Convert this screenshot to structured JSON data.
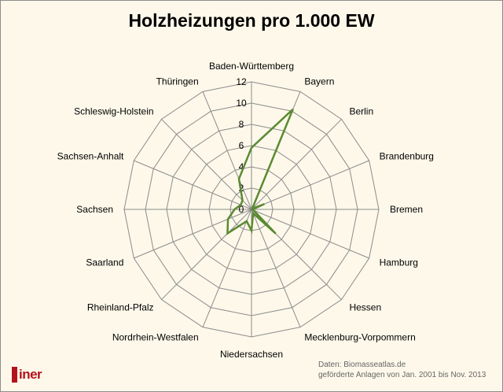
{
  "chart_data": {
    "type": "radar",
    "title": "Holzheizungen pro 1.000  EW",
    "categories": [
      "Baden-Württemberg",
      "Bayern",
      "Berlin",
      "Brandenburg",
      "Bremen",
      "Hamburg",
      "Hessen",
      "Mecklenburg-Vorpommern",
      "Niedersachsen",
      "Nordrhein-Westfalen",
      "Rheinland-Pfalz",
      "Saarland",
      "Sachsen",
      "Sachsen-Anhalt",
      "Schleswig-Holstein",
      "Thüringen"
    ],
    "series": [
      {
        "values": [
          5.8,
          10.2,
          0.1,
          1.3,
          0.1,
          0.2,
          3.2,
          0.4,
          2.0,
          1.2,
          3.2,
          2.4,
          1.6,
          1.1,
          1.2,
          3.1
        ],
        "color": "#5b8a33"
      }
    ],
    "r_ticks": [
      0,
      2,
      4,
      6,
      8,
      10,
      12
    ],
    "r_range": [
      0,
      12
    ],
    "grid": true,
    "legend": "none"
  },
  "source": {
    "line1": "Daten: Biomasseatlas.de",
    "line2": "geförderte Anlagen von Jan. 2001 bis Nov. 2013"
  },
  "logo": {
    "text": "iner"
  },
  "colors": {
    "background": "#fdf8ea",
    "grid": "#8c8c8c",
    "series": "#5b8a33",
    "logo": "#b4121b"
  }
}
